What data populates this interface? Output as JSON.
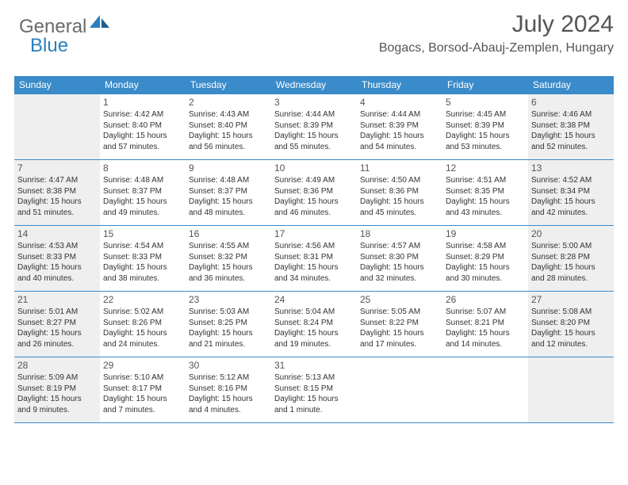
{
  "logo": {
    "general": "General",
    "blue": "Blue"
  },
  "title": "July 2024",
  "location": "Bogacs, Borsod-Abauj-Zemplen, Hungary",
  "colors": {
    "header_bg": "#3a8bc9",
    "header_text": "#ffffff",
    "shaded_bg": "#efefef",
    "border": "#3a8bc9",
    "logo_gray": "#6a6a6a",
    "logo_blue": "#2a7fbd",
    "text": "#333333",
    "title_color": "#555555"
  },
  "day_names": [
    "Sunday",
    "Monday",
    "Tuesday",
    "Wednesday",
    "Thursday",
    "Friday",
    "Saturday"
  ],
  "weeks": [
    [
      {
        "num": "",
        "sunrise": "",
        "sunset": "",
        "daylight1": "",
        "daylight2": "",
        "shaded": true
      },
      {
        "num": "1",
        "sunrise": "Sunrise: 4:42 AM",
        "sunset": "Sunset: 8:40 PM",
        "daylight1": "Daylight: 15 hours",
        "daylight2": "and 57 minutes.",
        "shaded": false
      },
      {
        "num": "2",
        "sunrise": "Sunrise: 4:43 AM",
        "sunset": "Sunset: 8:40 PM",
        "daylight1": "Daylight: 15 hours",
        "daylight2": "and 56 minutes.",
        "shaded": false
      },
      {
        "num": "3",
        "sunrise": "Sunrise: 4:44 AM",
        "sunset": "Sunset: 8:39 PM",
        "daylight1": "Daylight: 15 hours",
        "daylight2": "and 55 minutes.",
        "shaded": false
      },
      {
        "num": "4",
        "sunrise": "Sunrise: 4:44 AM",
        "sunset": "Sunset: 8:39 PM",
        "daylight1": "Daylight: 15 hours",
        "daylight2": "and 54 minutes.",
        "shaded": false
      },
      {
        "num": "5",
        "sunrise": "Sunrise: 4:45 AM",
        "sunset": "Sunset: 8:39 PM",
        "daylight1": "Daylight: 15 hours",
        "daylight2": "and 53 minutes.",
        "shaded": false
      },
      {
        "num": "6",
        "sunrise": "Sunrise: 4:46 AM",
        "sunset": "Sunset: 8:38 PM",
        "daylight1": "Daylight: 15 hours",
        "daylight2": "and 52 minutes.",
        "shaded": true
      }
    ],
    [
      {
        "num": "7",
        "sunrise": "Sunrise: 4:47 AM",
        "sunset": "Sunset: 8:38 PM",
        "daylight1": "Daylight: 15 hours",
        "daylight2": "and 51 minutes.",
        "shaded": true
      },
      {
        "num": "8",
        "sunrise": "Sunrise: 4:48 AM",
        "sunset": "Sunset: 8:37 PM",
        "daylight1": "Daylight: 15 hours",
        "daylight2": "and 49 minutes.",
        "shaded": false
      },
      {
        "num": "9",
        "sunrise": "Sunrise: 4:48 AM",
        "sunset": "Sunset: 8:37 PM",
        "daylight1": "Daylight: 15 hours",
        "daylight2": "and 48 minutes.",
        "shaded": false
      },
      {
        "num": "10",
        "sunrise": "Sunrise: 4:49 AM",
        "sunset": "Sunset: 8:36 PM",
        "daylight1": "Daylight: 15 hours",
        "daylight2": "and 46 minutes.",
        "shaded": false
      },
      {
        "num": "11",
        "sunrise": "Sunrise: 4:50 AM",
        "sunset": "Sunset: 8:36 PM",
        "daylight1": "Daylight: 15 hours",
        "daylight2": "and 45 minutes.",
        "shaded": false
      },
      {
        "num": "12",
        "sunrise": "Sunrise: 4:51 AM",
        "sunset": "Sunset: 8:35 PM",
        "daylight1": "Daylight: 15 hours",
        "daylight2": "and 43 minutes.",
        "shaded": false
      },
      {
        "num": "13",
        "sunrise": "Sunrise: 4:52 AM",
        "sunset": "Sunset: 8:34 PM",
        "daylight1": "Daylight: 15 hours",
        "daylight2": "and 42 minutes.",
        "shaded": true
      }
    ],
    [
      {
        "num": "14",
        "sunrise": "Sunrise: 4:53 AM",
        "sunset": "Sunset: 8:33 PM",
        "daylight1": "Daylight: 15 hours",
        "daylight2": "and 40 minutes.",
        "shaded": true
      },
      {
        "num": "15",
        "sunrise": "Sunrise: 4:54 AM",
        "sunset": "Sunset: 8:33 PM",
        "daylight1": "Daylight: 15 hours",
        "daylight2": "and 38 minutes.",
        "shaded": false
      },
      {
        "num": "16",
        "sunrise": "Sunrise: 4:55 AM",
        "sunset": "Sunset: 8:32 PM",
        "daylight1": "Daylight: 15 hours",
        "daylight2": "and 36 minutes.",
        "shaded": false
      },
      {
        "num": "17",
        "sunrise": "Sunrise: 4:56 AM",
        "sunset": "Sunset: 8:31 PM",
        "daylight1": "Daylight: 15 hours",
        "daylight2": "and 34 minutes.",
        "shaded": false
      },
      {
        "num": "18",
        "sunrise": "Sunrise: 4:57 AM",
        "sunset": "Sunset: 8:30 PM",
        "daylight1": "Daylight: 15 hours",
        "daylight2": "and 32 minutes.",
        "shaded": false
      },
      {
        "num": "19",
        "sunrise": "Sunrise: 4:58 AM",
        "sunset": "Sunset: 8:29 PM",
        "daylight1": "Daylight: 15 hours",
        "daylight2": "and 30 minutes.",
        "shaded": false
      },
      {
        "num": "20",
        "sunrise": "Sunrise: 5:00 AM",
        "sunset": "Sunset: 8:28 PM",
        "daylight1": "Daylight: 15 hours",
        "daylight2": "and 28 minutes.",
        "shaded": true
      }
    ],
    [
      {
        "num": "21",
        "sunrise": "Sunrise: 5:01 AM",
        "sunset": "Sunset: 8:27 PM",
        "daylight1": "Daylight: 15 hours",
        "daylight2": "and 26 minutes.",
        "shaded": true
      },
      {
        "num": "22",
        "sunrise": "Sunrise: 5:02 AM",
        "sunset": "Sunset: 8:26 PM",
        "daylight1": "Daylight: 15 hours",
        "daylight2": "and 24 minutes.",
        "shaded": false
      },
      {
        "num": "23",
        "sunrise": "Sunrise: 5:03 AM",
        "sunset": "Sunset: 8:25 PM",
        "daylight1": "Daylight: 15 hours",
        "daylight2": "and 21 minutes.",
        "shaded": false
      },
      {
        "num": "24",
        "sunrise": "Sunrise: 5:04 AM",
        "sunset": "Sunset: 8:24 PM",
        "daylight1": "Daylight: 15 hours",
        "daylight2": "and 19 minutes.",
        "shaded": false
      },
      {
        "num": "25",
        "sunrise": "Sunrise: 5:05 AM",
        "sunset": "Sunset: 8:22 PM",
        "daylight1": "Daylight: 15 hours",
        "daylight2": "and 17 minutes.",
        "shaded": false
      },
      {
        "num": "26",
        "sunrise": "Sunrise: 5:07 AM",
        "sunset": "Sunset: 8:21 PM",
        "daylight1": "Daylight: 15 hours",
        "daylight2": "and 14 minutes.",
        "shaded": false
      },
      {
        "num": "27",
        "sunrise": "Sunrise: 5:08 AM",
        "sunset": "Sunset: 8:20 PM",
        "daylight1": "Daylight: 15 hours",
        "daylight2": "and 12 minutes.",
        "shaded": true
      }
    ],
    [
      {
        "num": "28",
        "sunrise": "Sunrise: 5:09 AM",
        "sunset": "Sunset: 8:19 PM",
        "daylight1": "Daylight: 15 hours",
        "daylight2": "and 9 minutes.",
        "shaded": true
      },
      {
        "num": "29",
        "sunrise": "Sunrise: 5:10 AM",
        "sunset": "Sunset: 8:17 PM",
        "daylight1": "Daylight: 15 hours",
        "daylight2": "and 7 minutes.",
        "shaded": false
      },
      {
        "num": "30",
        "sunrise": "Sunrise: 5:12 AM",
        "sunset": "Sunset: 8:16 PM",
        "daylight1": "Daylight: 15 hours",
        "daylight2": "and 4 minutes.",
        "shaded": false
      },
      {
        "num": "31",
        "sunrise": "Sunrise: 5:13 AM",
        "sunset": "Sunset: 8:15 PM",
        "daylight1": "Daylight: 15 hours",
        "daylight2": "and 1 minute.",
        "shaded": false
      },
      {
        "num": "",
        "sunrise": "",
        "sunset": "",
        "daylight1": "",
        "daylight2": "",
        "shaded": false
      },
      {
        "num": "",
        "sunrise": "",
        "sunset": "",
        "daylight1": "",
        "daylight2": "",
        "shaded": false
      },
      {
        "num": "",
        "sunrise": "",
        "sunset": "",
        "daylight1": "",
        "daylight2": "",
        "shaded": true
      }
    ]
  ]
}
